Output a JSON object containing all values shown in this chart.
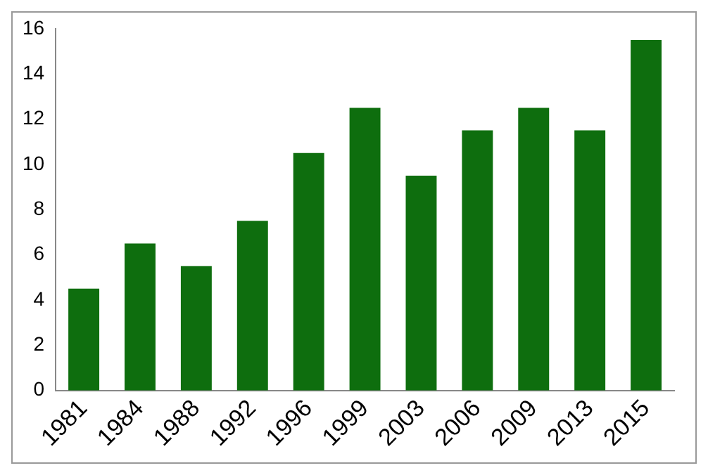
{
  "chart_data": {
    "type": "bar",
    "categories": [
      "1981",
      "1984",
      "1988",
      "1992",
      "1996",
      "1999",
      "2003",
      "2006",
      "2009",
      "2013",
      "2015"
    ],
    "values": [
      4.5,
      6.5,
      5.5,
      7.5,
      10.5,
      12.5,
      9.5,
      11.5,
      12.5,
      11.5,
      15.5
    ],
    "color": "#0e6e0e",
    "ylim": [
      0,
      16
    ],
    "yticks": [
      0,
      2,
      4,
      6,
      8,
      10,
      12,
      14,
      16
    ],
    "grid": false,
    "legend": false
  }
}
